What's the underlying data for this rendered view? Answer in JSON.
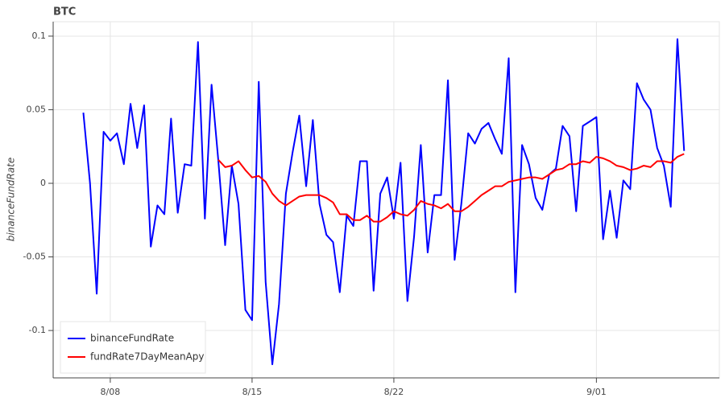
{
  "chart_data": {
    "type": "line",
    "title": "BTC",
    "y_label": "binanceFundRate",
    "x": [
      6.67,
      7,
      7.33,
      7.67,
      8,
      8.33,
      8.67,
      9,
      9.33,
      9.67,
      10,
      10.33,
      10.67,
      11,
      11.33,
      11.67,
      12,
      12.33,
      12.67,
      13,
      13.33,
      13.67,
      14,
      14.33,
      14.67,
      15,
      15.33,
      15.67,
      16,
      16.33,
      16.67,
      17,
      17.33,
      17.67,
      18,
      18.33,
      18.67,
      19,
      19.33,
      19.67,
      20,
      20.33,
      20.67,
      21,
      21.33,
      21.67,
      22,
      22.33,
      22.67,
      23,
      23.33,
      23.67,
      24,
      24.33,
      24.67,
      25,
      25.33,
      25.67,
      26,
      26.33,
      26.67,
      27,
      27.33,
      27.67,
      28,
      28.33,
      28.67,
      29,
      29.33,
      29.67,
      30,
      30.33,
      30.67,
      31,
      31.33,
      31.67,
      32,
      32.33,
      32.67,
      33,
      33.33,
      33.67,
      34,
      34.33,
      34.67,
      35,
      35.33,
      35.67,
      36,
      36.33
    ],
    "series": [
      {
        "name": "binanceFundRate",
        "color": "#0000ff",
        "values": [
          0.048,
          0.0,
          -0.075,
          0.035,
          0.029,
          0.034,
          0.013,
          0.054,
          0.024,
          0.053,
          -0.043,
          -0.015,
          -0.021,
          0.044,
          -0.02,
          0.013,
          0.012,
          0.096,
          -0.024,
          0.067,
          0.016,
          -0.042,
          0.012,
          -0.014,
          -0.086,
          -0.093,
          0.069,
          -0.067,
          -0.123,
          -0.082,
          -0.007,
          0.021,
          0.046,
          -0.002,
          0.043,
          -0.014,
          -0.035,
          -0.04,
          -0.074,
          -0.022,
          -0.029,
          0.015,
          0.015,
          -0.073,
          -0.007,
          0.004,
          -0.024,
          0.014,
          -0.08,
          -0.036,
          0.026,
          -0.047,
          -0.008,
          -0.008,
          0.07,
          -0.052,
          -0.014,
          0.034,
          0.027,
          0.037,
          0.041,
          0.03,
          0.02,
          0.085,
          -0.074,
          0.026,
          0.013,
          -0.01,
          -0.018,
          0.006,
          0.01,
          0.039,
          0.032,
          -0.019,
          0.039,
          0.042,
          0.045,
          -0.038,
          -0.005,
          -0.037,
          0.002,
          -0.004,
          0.068,
          0.057,
          0.05,
          0.024,
          0.012,
          -0.016,
          0.098,
          0.022
        ]
      },
      {
        "name": "fundRate7DayMeanApy",
        "color": "#ff0000",
        "values": [
          null,
          null,
          null,
          null,
          null,
          null,
          null,
          null,
          null,
          null,
          null,
          null,
          null,
          null,
          null,
          null,
          null,
          null,
          null,
          null,
          0.016,
          0.011,
          0.012,
          0.015,
          0.009,
          0.004,
          0.005,
          0.001,
          -0.007,
          -0.012,
          -0.015,
          -0.012,
          -0.009,
          -0.008,
          -0.008,
          -0.008,
          -0.01,
          -0.013,
          -0.021,
          -0.021,
          -0.025,
          -0.025,
          -0.022,
          -0.026,
          -0.026,
          -0.023,
          -0.019,
          -0.021,
          -0.022,
          -0.018,
          -0.012,
          -0.014,
          -0.015,
          -0.017,
          -0.014,
          -0.019,
          -0.019,
          -0.016,
          -0.012,
          -0.008,
          -0.005,
          -0.002,
          -0.002,
          0.001,
          0.002,
          0.003,
          0.004,
          0.004,
          0.003,
          0.006,
          0.009,
          0.01,
          0.013,
          0.013,
          0.015,
          0.014,
          0.018,
          0.017,
          0.015,
          0.012,
          0.011,
          0.009,
          0.01,
          0.012,
          0.011,
          0.015,
          0.015,
          0.014,
          0.018,
          0.02
        ]
      }
    ],
    "xlim": [
      5.18,
      38.07
    ],
    "ylim": [
      -0.1322,
      0.1098
    ],
    "xticks": [
      {
        "value": 8,
        "label": "8/08"
      },
      {
        "value": 15,
        "label": "8/15"
      },
      {
        "value": 22,
        "label": "8/22"
      },
      {
        "value": 32,
        "label": "9/01"
      }
    ],
    "yticks": [
      -0.1,
      -0.05,
      0,
      0.05,
      0.1
    ],
    "grid": true,
    "legend": "bottom_left"
  }
}
